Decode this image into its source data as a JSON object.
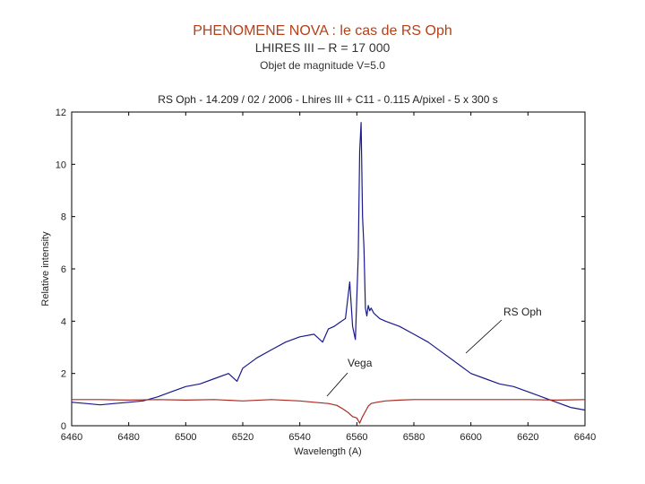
{
  "slide": {
    "title": "PHENOMENE NOVA : le cas de RS Oph",
    "subtitle": "LHIRES III – R = 17 000",
    "note": "Objet de magnitude V=5.0"
  },
  "chart_data": {
    "type": "line",
    "title": "RS Oph - 14.209 / 02 / 2006 - Lhires III + C11 - 0.115 A/pixel - 5 x 300 s",
    "xlabel": "Wavelength (A)",
    "ylabel": "Relative intensity",
    "xlim": [
      6460,
      6640
    ],
    "ylim": [
      0,
      12
    ],
    "xticks": [
      6460,
      6480,
      6500,
      6520,
      6540,
      6560,
      6580,
      6600,
      6620,
      6640
    ],
    "yticks": [
      0,
      2,
      4,
      6,
      8,
      10,
      12
    ],
    "grid": false,
    "series": [
      {
        "name": "RS Oph",
        "color": "#1a1a8c",
        "x": [
          6460,
          6465,
          6470,
          6475,
          6480,
          6485,
          6490,
          6495,
          6500,
          6505,
          6510,
          6515,
          6518,
          6520,
          6525,
          6530,
          6535,
          6540,
          6545,
          6548,
          6550,
          6552,
          6554,
          6556,
          6557.5,
          6558.5,
          6559.5,
          6560.5,
          6561,
          6561.5,
          6562,
          6562.5,
          6563,
          6563.5,
          6564,
          6564.5,
          6565,
          6566,
          6568,
          6570,
          6575,
          6580,
          6585,
          6590,
          6595,
          6600,
          6605,
          6610,
          6615,
          6620,
          6625,
          6630,
          6635,
          6640
        ],
        "y": [
          0.9,
          0.85,
          0.8,
          0.85,
          0.9,
          0.95,
          1.1,
          1.3,
          1.5,
          1.6,
          1.8,
          2.0,
          1.7,
          2.2,
          2.6,
          2.9,
          3.2,
          3.4,
          3.5,
          3.2,
          3.7,
          3.8,
          3.95,
          4.1,
          5.5,
          3.8,
          3.3,
          6.5,
          10.5,
          11.6,
          8.0,
          6.8,
          4.5,
          4.2,
          4.6,
          4.4,
          4.5,
          4.3,
          4.1,
          4.0,
          3.8,
          3.5,
          3.2,
          2.8,
          2.4,
          2.0,
          1.8,
          1.6,
          1.5,
          1.3,
          1.1,
          0.9,
          0.7,
          0.6
        ]
      },
      {
        "name": "Vega",
        "color": "#aa2b22",
        "x": [
          6460,
          6470,
          6480,
          6490,
          6500,
          6510,
          6520,
          6530,
          6540,
          6545,
          6550,
          6553,
          6555,
          6557,
          6558.5,
          6560,
          6561,
          6562,
          6563,
          6564,
          6565,
          6567,
          6570,
          6575,
          6580,
          6590,
          6600,
          6610,
          6620,
          6630,
          6640
        ],
        "y": [
          1.0,
          1.0,
          0.98,
          1.0,
          0.98,
          1.0,
          0.95,
          1.0,
          0.95,
          0.9,
          0.85,
          0.78,
          0.65,
          0.5,
          0.35,
          0.3,
          0.1,
          0.35,
          0.55,
          0.75,
          0.85,
          0.9,
          0.95,
          0.98,
          1.0,
          1.0,
          1.0,
          1.0,
          1.0,
          0.98,
          1.0
        ]
      }
    ],
    "annotations": [
      {
        "text": "RS Oph",
        "color": "#1a1a8c"
      },
      {
        "text": "Vega",
        "color": "#aa2b22"
      }
    ]
  }
}
